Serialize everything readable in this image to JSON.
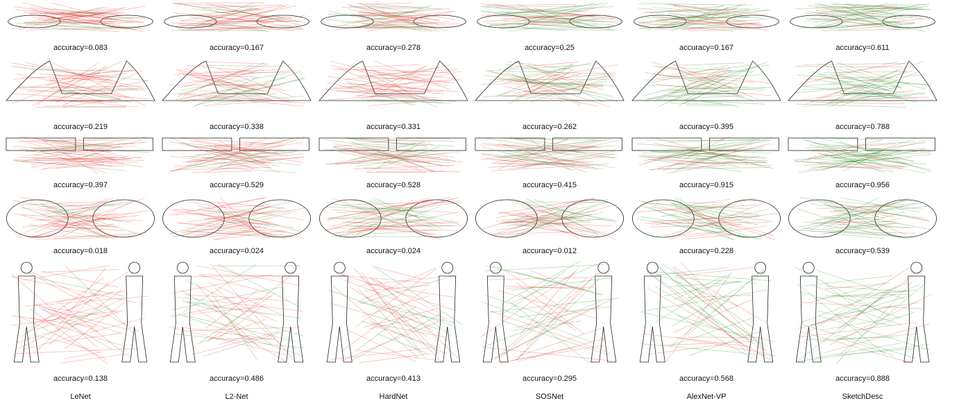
{
  "columns": [
    "LeNet",
    "L2-Net",
    "HardNet",
    "SOSNet",
    "AlexNet-VP",
    "SketchDesc"
  ],
  "rows": [
    {
      "cells": [
        "accuracy=0.083",
        "accuracy=0.167",
        "accuracy=0.278",
        "accuracy=0.25",
        "accuracy=0.167",
        "accuracy=0.611"
      ]
    },
    {
      "cells": [
        "accuracy=0.219",
        "accuracy=0.338",
        "accuracy=0.331",
        "accuracy=0.262",
        "accuracy=0.395",
        "accuracy=0.788"
      ]
    },
    {
      "cells": [
        "accuracy=0.397",
        "accuracy=0.529",
        "accuracy=0.528",
        "accuracy=0.415",
        "accuracy=0.915",
        "accuracy=0.956"
      ]
    },
    {
      "cells": [
        "accuracy=0.018",
        "accuracy=0.024",
        "accuracy=0.024",
        "accuracy=0.012",
        "accuracy=0.228",
        "accuracy=0.539"
      ]
    },
    {
      "cells": [
        "accuracy=0.138",
        "accuracy=0.486",
        "accuracy=0.413",
        "accuracy=0.295",
        "accuracy=0.568",
        "accuracy=0.888"
      ]
    }
  ]
}
